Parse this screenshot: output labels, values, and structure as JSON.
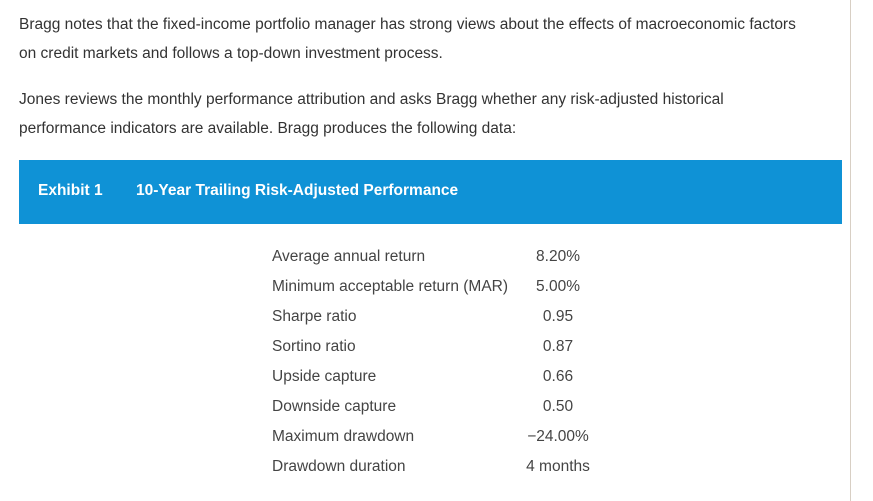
{
  "paragraphs": [
    {
      "line1": "Bragg notes that the fixed-income portfolio manager has strong views about the effects of macroeconomic factors",
      "line2": "on credit markets and follows a top-down investment process."
    },
    {
      "line1": "Jones reviews the monthly performance attribution and asks Bragg whether any risk-adjusted historical",
      "line2": "performance indicators are available. Bragg produces the following data:"
    }
  ],
  "exhibit": {
    "label": "Exhibit 1",
    "title": "10-Year Trailing Risk-Adjusted Performance",
    "banner_color": "#0f92d6",
    "rows": [
      {
        "label": "Average annual return",
        "value": "8.20%"
      },
      {
        "label": "Minimum acceptable return (MAR)",
        "value": "5.00%"
      },
      {
        "label": "Sharpe ratio",
        "value": "0.95"
      },
      {
        "label": "Sortino ratio",
        "value": "0.87"
      },
      {
        "label": "Upside capture",
        "value": "0.66"
      },
      {
        "label": "Downside capture",
        "value": "0.50"
      },
      {
        "label": "Maximum drawdown",
        "value": "−24.00%"
      },
      {
        "label": "Drawdown duration",
        "value": "4 months"
      }
    ]
  }
}
